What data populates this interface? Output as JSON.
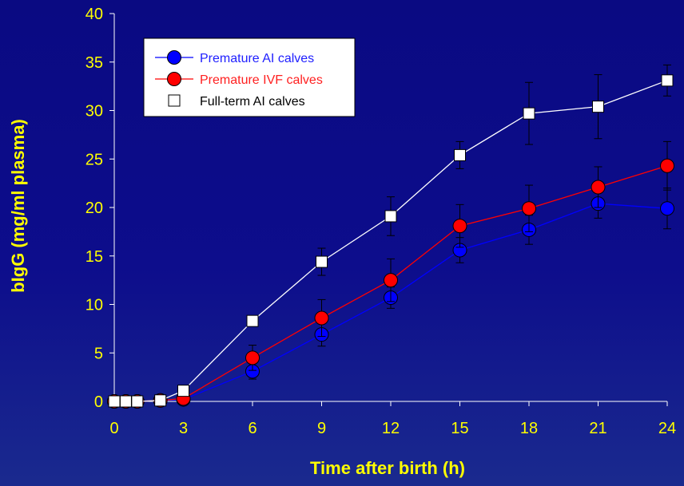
{
  "chart_data": {
    "type": "line",
    "title": "",
    "xlabel": "Time after birth (h)",
    "ylabel": "bIgG (mg/ml plasma)",
    "xlim": [
      0,
      24
    ],
    "ylim": [
      0,
      40
    ],
    "x_ticks": [
      0,
      3,
      6,
      9,
      12,
      15,
      18,
      21,
      24
    ],
    "y_ticks": [
      0,
      5,
      10,
      15,
      20,
      25,
      30,
      35,
      40
    ],
    "grid": false,
    "legend_position": "top-left",
    "series": [
      {
        "name": "Premature AI calves",
        "color": "#0000ff",
        "marker": "circle",
        "text_color": "#2020ff",
        "x": [
          0,
          0.5,
          1,
          2,
          3,
          6,
          9,
          12,
          15,
          18,
          21,
          24
        ],
        "y": [
          0,
          0,
          0,
          0.1,
          0.2,
          3.1,
          6.9,
          10.7,
          15.6,
          17.7,
          20.4,
          19.9
        ],
        "err": [
          0,
          0,
          0,
          0,
          0,
          0.8,
          1.2,
          1.1,
          1.3,
          1.5,
          1.5,
          2.1
        ]
      },
      {
        "name": "Premature IVF calves",
        "color": "#ff0000",
        "marker": "circle",
        "text_color": "#ff2020",
        "x": [
          0,
          0.5,
          1,
          2,
          3,
          6,
          9,
          12,
          15,
          18,
          21,
          24
        ],
        "y": [
          0,
          0,
          0,
          0.1,
          0.3,
          4.5,
          8.6,
          12.5,
          18.1,
          19.9,
          22.1,
          24.3
        ],
        "err": [
          0,
          0,
          0,
          0,
          0,
          1.3,
          1.9,
          2.2,
          2.2,
          2.4,
          2.1,
          2.5
        ]
      },
      {
        "name": "Full-term AI calves",
        "color": "#ffffff",
        "marker": "square",
        "text_color": "#000000",
        "x": [
          0,
          0.5,
          1,
          2,
          3,
          6,
          9,
          12,
          15,
          18,
          21,
          24
        ],
        "y": [
          0,
          0,
          0,
          0.1,
          1.1,
          8.3,
          14.4,
          19.1,
          25.4,
          29.7,
          30.4,
          33.1
        ],
        "err": [
          0,
          0,
          0,
          0,
          0,
          0,
          1.4,
          2.0,
          1.4,
          3.2,
          3.3,
          1.6
        ]
      }
    ]
  }
}
